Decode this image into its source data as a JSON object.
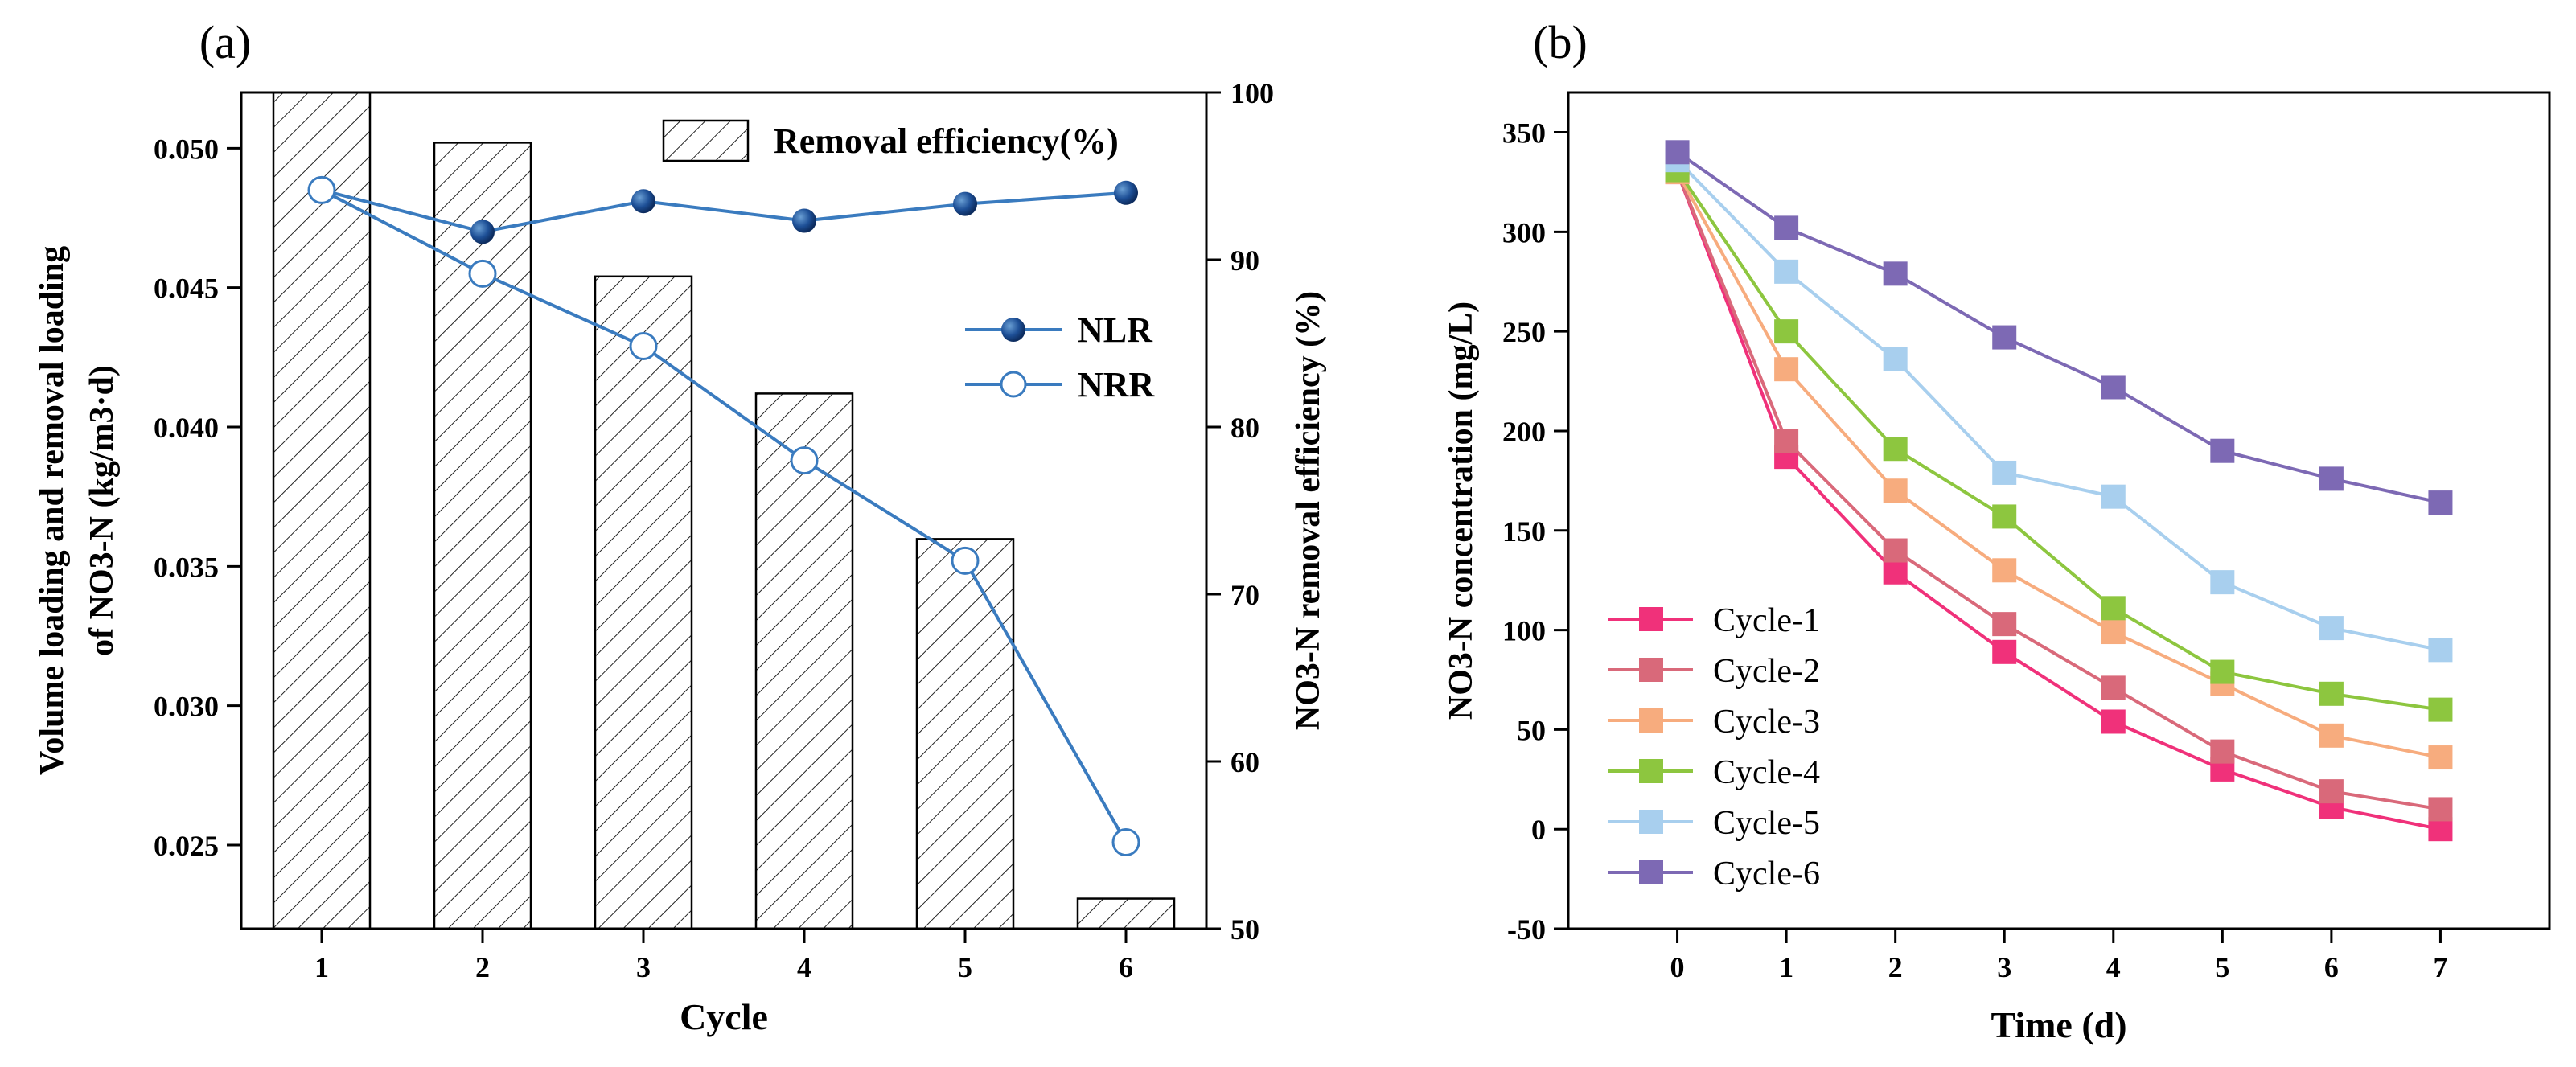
{
  "panel_a_label": "(a)",
  "panel_b_label": "(b)",
  "chart_data": [
    {
      "type": "bar",
      "panel": "(a)",
      "xlabel": "Cycle",
      "categories": [
        "1",
        "2",
        "3",
        "4",
        "5",
        "6"
      ],
      "ylabel_left_line1": "Volume loading and removal loading",
      "ylabel_left_line2": "of NO3-N (kg/m3·d)",
      "ylabel_right": "NO3-N removal efficiency (%)",
      "ylim_left": [
        0.022,
        0.052
      ],
      "ylim_right": [
        50,
        100
      ],
      "yticks_left": [
        "0.025",
        "0.030",
        "0.035",
        "0.040",
        "0.045",
        "0.050"
      ],
      "yticks_right": [
        "50",
        "60",
        "70",
        "80",
        "90",
        "100"
      ],
      "bar_series": {
        "name": "Removal efficiency(%)",
        "axis": "right",
        "values": [
          100,
          97,
          89,
          82,
          73.3,
          51.8
        ]
      },
      "line_series": [
        {
          "name": "NLR",
          "axis": "left",
          "marker": "filled-circle",
          "values": [
            0.0485,
            0.047,
            0.0481,
            0.0474,
            0.048,
            0.0484
          ]
        },
        {
          "name": "NRR",
          "axis": "left",
          "marker": "open-circle",
          "values": [
            0.0485,
            0.0455,
            0.0429,
            0.0388,
            0.0352,
            0.0251
          ]
        }
      ],
      "legend": [
        "Removal efficiency(%)",
        "NLR",
        "NRR"
      ]
    },
    {
      "type": "line",
      "panel": "(b)",
      "xlabel": "Time (d)",
      "ylabel": "NO3-N concentration (mg/L)",
      "x": [
        0,
        1,
        2,
        3,
        4,
        5,
        6,
        7
      ],
      "xlim": [
        -1,
        8
      ],
      "ylim": [
        -50,
        370
      ],
      "xticks": [
        "0",
        "1",
        "2",
        "3",
        "4",
        "5",
        "6",
        "7"
      ],
      "yticks": [
        "-50",
        "0",
        "50",
        "100",
        "150",
        "200",
        "250",
        "300",
        "350"
      ],
      "legend_position": "bottom-left",
      "series": [
        {
          "name": "Cycle-1",
          "color": "#f0317a",
          "values": [
            330,
            187,
            129,
            89,
            54,
            30,
            11,
            0
          ]
        },
        {
          "name": "Cycle-2",
          "color": "#d9697a",
          "values": [
            330,
            195,
            140,
            103,
            71,
            39,
            19,
            10
          ]
        },
        {
          "name": "Cycle-3",
          "color": "#f7ac7e",
          "values": [
            330,
            231,
            170,
            130,
            99,
            73,
            47,
            36
          ]
        },
        {
          "name": "Cycle-4",
          "color": "#8dc63f",
          "values": [
            331,
            250,
            191,
            157,
            111,
            79,
            68,
            60
          ]
        },
        {
          "name": "Cycle-5",
          "color": "#a8cfee",
          "values": [
            336,
            280,
            236,
            179,
            167,
            124,
            101,
            90
          ]
        },
        {
          "name": "Cycle-6",
          "color": "#7d69b4",
          "values": [
            340,
            302,
            279,
            247,
            222,
            190,
            176,
            164
          ]
        }
      ]
    }
  ]
}
